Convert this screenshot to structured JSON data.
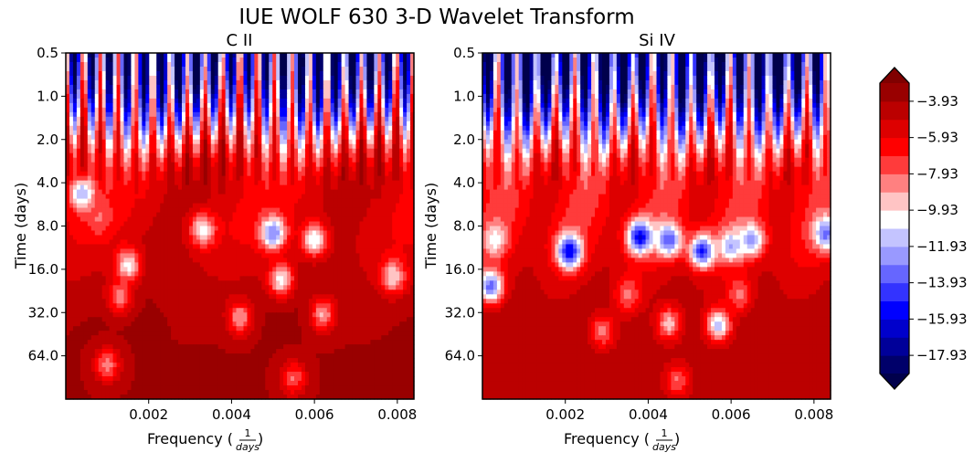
{
  "figure": {
    "title": "IUE WOLF 630 3-D Wavelet Transform"
  },
  "chart_data": [
    {
      "type": "heatmap",
      "title": "C II",
      "xlabel": "Frequency",
      "xlabel_unit_num": "1",
      "xlabel_unit_den": "days",
      "ylabel": "Time (days)",
      "x_ticks": [
        "0.002",
        "0.004",
        "0.006",
        "0.008"
      ],
      "x_tick_values": [
        0.002,
        0.004,
        0.006,
        0.008
      ],
      "xlim": [
        0.0,
        0.0084
      ],
      "y_ticks": [
        "0.5",
        "1.0",
        "2.0",
        "4.0",
        "8.0",
        "16.0",
        "32.0",
        "64.0"
      ],
      "y_tick_values": [
        0.5,
        1.0,
        2.0,
        4.0,
        8.0,
        16.0,
        32.0,
        64.0
      ],
      "ylim": [
        0.5,
        128
      ],
      "y_scale": "log2-inverted",
      "profile": {
        "stripes": 20,
        "top_power": -15.0,
        "mid_power": -5.5,
        "bottom_power": -3.9
      },
      "highlights": [
        {
          "x": 0.0015,
          "y": 15.0,
          "level": -10.5
        },
        {
          "x": 0.0013,
          "y": 25.0,
          "level": -8.5
        },
        {
          "x": 0.0033,
          "y": 8.5,
          "level": -10.5
        },
        {
          "x": 0.005,
          "y": 9.0,
          "level": -13.0
        },
        {
          "x": 0.006,
          "y": 10.0,
          "level": -11.0
        },
        {
          "x": 0.0052,
          "y": 19.0,
          "level": -10.5
        },
        {
          "x": 0.0079,
          "y": 18.0,
          "level": -10.0
        },
        {
          "x": 0.0042,
          "y": 35.0,
          "level": -9.0
        },
        {
          "x": 0.0062,
          "y": 33.0,
          "level": -9.0
        },
        {
          "x": 0.001,
          "y": 74.0,
          "level": -8.5
        },
        {
          "x": 0.0055,
          "y": 92.0,
          "level": -8.0
        },
        {
          "x": 0.0004,
          "y": 4.8,
          "level": -12.0
        },
        {
          "x": 0.0008,
          "y": 7.0,
          "level": -8.0
        }
      ]
    },
    {
      "type": "heatmap",
      "title": "Si IV",
      "xlabel": "Frequency",
      "xlabel_unit_num": "1",
      "xlabel_unit_den": "days",
      "ylabel": "Time (days)",
      "x_ticks": [
        "0.002",
        "0.004",
        "0.006",
        "0.008"
      ],
      "x_tick_values": [
        0.002,
        0.004,
        0.006,
        0.008
      ],
      "xlim": [
        0.0,
        0.0084
      ],
      "y_ticks": [
        "0.5",
        "1.0",
        "2.0",
        "4.0",
        "8.0",
        "16.0",
        "32.0",
        "64.0"
      ],
      "y_tick_values": [
        0.5,
        1.0,
        2.0,
        4.0,
        8.0,
        16.0,
        32.0,
        64.0
      ],
      "ylim": [
        0.5,
        128
      ],
      "y_scale": "log2-inverted",
      "profile": {
        "stripes": 18,
        "top_power": -16.5,
        "mid_power": -6.5,
        "bottom_power": -4.3
      },
      "highlights": [
        {
          "x": 0.0038,
          "y": 9.5,
          "level": -16.0
        },
        {
          "x": 0.0045,
          "y": 10.0,
          "level": -14.0
        },
        {
          "x": 0.006,
          "y": 11.0,
          "level": -12.0
        },
        {
          "x": 0.0053,
          "y": 12.0,
          "level": -15.0
        },
        {
          "x": 0.0065,
          "y": 10.0,
          "level": -12.5
        },
        {
          "x": 0.0021,
          "y": 12.0,
          "level": -16.0
        },
        {
          "x": 0.0003,
          "y": 10.0,
          "level": -10.5
        },
        {
          "x": 0.0002,
          "y": 21.0,
          "level": -13.5
        },
        {
          "x": 0.0083,
          "y": 9.0,
          "level": -13.5
        },
        {
          "x": 0.0045,
          "y": 38.0,
          "level": -9.5
        },
        {
          "x": 0.0029,
          "y": 43.0,
          "level": -8.5
        },
        {
          "x": 0.0057,
          "y": 39.0,
          "level": -11.5
        },
        {
          "x": 0.0035,
          "y": 24.0,
          "level": -8.5
        },
        {
          "x": 0.0062,
          "y": 24.0,
          "level": -8.5
        },
        {
          "x": 0.0047,
          "y": 95.0,
          "level": -8.0
        }
      ]
    }
  ],
  "colorbar": {
    "tick_labels": [
      "−3.93",
      "−5.93",
      "−7.93",
      "−9.93",
      "−11.93",
      "−13.93",
      "−15.93",
      "−17.93"
    ],
    "tick_values": [
      -3.93,
      -5.93,
      -7.93,
      -9.93,
      -11.93,
      -13.93,
      -15.93,
      -17.93
    ],
    "levels": [
      -18.93,
      -17.93,
      -16.93,
      -15.93,
      -14.93,
      -13.93,
      -12.93,
      -11.93,
      -10.93,
      -9.93,
      -8.93,
      -7.93,
      -6.93,
      -5.93,
      -4.93,
      -3.93,
      -2.93
    ],
    "colors": [
      "#00006a",
      "#000099",
      "#0000cc",
      "#0000ff",
      "#3333ff",
      "#6666ff",
      "#9999ff",
      "#c4c4ff",
      "#ffffff",
      "#ffc4c4",
      "#ff8080",
      "#ff3b3b",
      "#ff0000",
      "#dd0000",
      "#bb0000",
      "#990000"
    ],
    "under_color": "#00004c",
    "over_color": "#800000"
  }
}
